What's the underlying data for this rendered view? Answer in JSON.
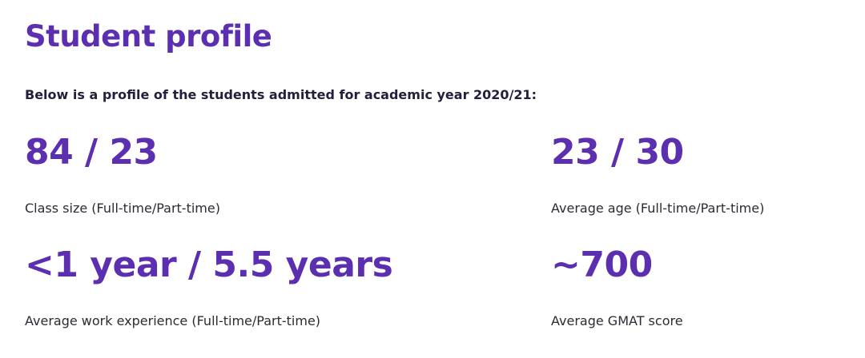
{
  "page": {
    "title": "Student profile",
    "intro": "Below is a profile of the students admitted for academic year 2020/21:"
  },
  "stats": [
    {
      "value": "84 / 23",
      "label": "Class size (Full-time/Part-time)"
    },
    {
      "value": "23 / 30",
      "label": "Average age (Full-time/Part-time)"
    },
    {
      "value": "<1 year / 5.5 years",
      "label": "Average work experience (Full-time/Part-time)"
    },
    {
      "value": "~700",
      "label": "Average GMAT score"
    }
  ],
  "colors": {
    "accent": "#5b2fb0",
    "heading_text": "#24203b",
    "body_text": "#2b2b33",
    "background": "#ffffff"
  }
}
